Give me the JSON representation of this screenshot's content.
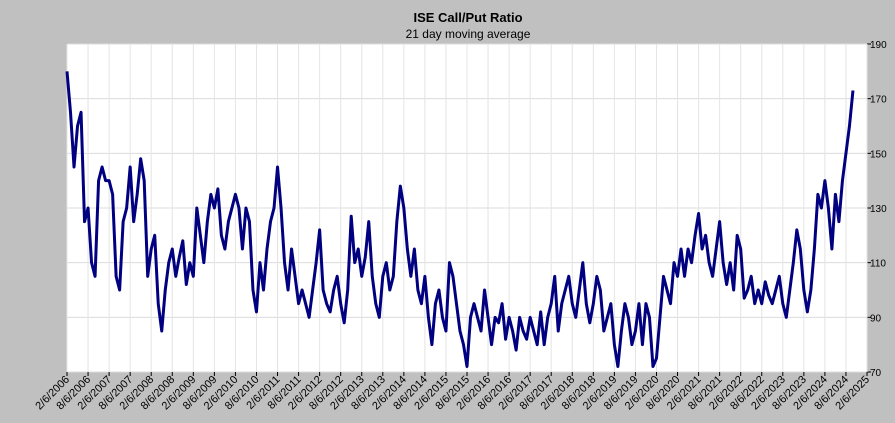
{
  "chart_data": {
    "type": "line",
    "title": "ISE  Call/Put Ratio",
    "subtitle": "21 day moving average",
    "x": [
      "2/6/2006",
      "3/6/2006",
      "4/6/2006",
      "5/6/2006",
      "6/6/2006",
      "7/6/2006",
      "8/6/2006",
      "9/6/2006",
      "10/6/2006",
      "11/6/2006",
      "12/6/2006",
      "1/6/2007",
      "2/6/2007",
      "3/6/2007",
      "4/6/2007",
      "5/6/2007",
      "6/6/2007",
      "7/6/2007",
      "8/6/2007",
      "9/6/2007",
      "10/6/2007",
      "11/6/2007",
      "12/6/2007",
      "1/6/2008",
      "2/6/2008",
      "3/6/2008",
      "4/6/2008",
      "5/6/2008",
      "6/6/2008",
      "7/6/2008",
      "8/6/2008",
      "9/6/2008",
      "10/6/2008",
      "11/6/2008",
      "12/6/2008",
      "1/6/2009",
      "2/6/2009",
      "3/6/2009",
      "4/6/2009",
      "5/6/2009",
      "6/6/2009",
      "7/6/2009",
      "8/6/2009",
      "9/6/2009",
      "10/6/2009",
      "11/6/2009",
      "12/6/2009",
      "1/6/2010",
      "2/6/2010",
      "3/6/2010",
      "4/6/2010",
      "5/6/2010",
      "6/6/2010",
      "7/6/2010",
      "8/6/2010",
      "9/6/2010",
      "10/6/2010",
      "11/6/2010",
      "12/6/2010",
      "1/6/2011",
      "2/6/2011",
      "3/6/2011",
      "4/6/2011",
      "5/6/2011",
      "6/6/2011",
      "7/6/2011",
      "8/6/2011",
      "9/6/2011",
      "10/6/2011",
      "11/6/2011",
      "12/6/2011",
      "1/6/2012",
      "2/6/2012",
      "3/6/2012",
      "4/6/2012",
      "5/6/2012",
      "6/6/2012",
      "7/6/2012",
      "8/6/2012",
      "9/6/2012",
      "10/6/2012",
      "11/6/2012",
      "12/6/2012",
      "1/6/2013",
      "2/6/2013",
      "3/6/2013",
      "4/6/2013",
      "5/6/2013",
      "6/6/2013",
      "7/6/2013",
      "8/6/2013",
      "9/6/2013",
      "10/6/2013",
      "11/6/2013",
      "12/6/2013",
      "1/6/2014",
      "2/6/2014",
      "3/6/2014",
      "4/6/2014",
      "5/6/2014",
      "6/6/2014",
      "7/6/2014",
      "8/6/2014",
      "9/6/2014",
      "10/6/2014",
      "11/6/2014",
      "12/6/2014",
      "1/6/2015",
      "2/6/2015",
      "3/6/2015",
      "4/6/2015",
      "5/6/2015",
      "6/6/2015",
      "7/6/2015",
      "8/6/2015",
      "9/6/2015",
      "10/6/2015",
      "11/6/2015",
      "12/6/2015",
      "1/6/2016",
      "2/6/2016",
      "3/6/2016",
      "4/6/2016",
      "5/6/2016",
      "6/6/2016",
      "7/6/2016",
      "8/6/2016",
      "9/6/2016",
      "10/6/2016",
      "11/6/2016",
      "12/6/2016",
      "1/6/2017",
      "2/6/2017",
      "3/6/2017",
      "4/6/2017",
      "5/6/2017",
      "6/6/2017",
      "7/6/2017",
      "8/6/2017",
      "9/6/2017",
      "10/6/2017",
      "11/6/2017",
      "12/6/2017",
      "1/6/2018",
      "2/6/2018",
      "3/6/2018",
      "4/6/2018",
      "5/6/2018",
      "6/6/2018",
      "7/6/2018",
      "8/6/2018",
      "9/6/2018",
      "10/6/2018",
      "11/6/2018",
      "12/6/2018",
      "1/6/2019",
      "2/6/2019",
      "3/6/2019",
      "4/6/2019",
      "5/6/2019",
      "6/6/2019",
      "7/6/2019",
      "8/6/2019",
      "9/6/2019",
      "10/6/2019",
      "11/6/2019",
      "12/6/2019",
      "1/6/2020",
      "2/6/2020",
      "3/6/2020",
      "4/6/2020",
      "5/6/2020",
      "6/6/2020",
      "7/6/2020",
      "8/6/2020",
      "9/6/2020",
      "10/6/2020",
      "11/6/2020",
      "12/6/2020",
      "1/6/2021",
      "2/6/2021",
      "3/6/2021",
      "4/6/2021",
      "5/6/2021",
      "6/6/2021",
      "7/6/2021",
      "8/6/2021",
      "9/6/2021",
      "10/6/2021",
      "11/6/2021",
      "12/6/2021",
      "1/6/2022",
      "2/6/2022",
      "3/6/2022",
      "4/6/2022",
      "5/6/2022",
      "6/6/2022",
      "7/6/2022",
      "8/6/2022",
      "9/6/2022",
      "10/6/2022",
      "11/6/2022",
      "12/6/2022",
      "1/6/2023",
      "2/6/2023",
      "3/6/2023",
      "4/6/2023",
      "5/6/2023",
      "6/6/2023",
      "7/6/2023",
      "8/6/2023",
      "9/6/2023",
      "10/6/2023",
      "11/6/2023",
      "12/6/2023",
      "1/6/2024",
      "2/6/2024",
      "3/6/2024",
      "4/6/2024",
      "5/6/2024",
      "6/6/2024",
      "7/6/2024",
      "8/6/2024",
      "9/6/2024",
      "10/6/2024"
    ],
    "series": [
      {
        "name": "21 day moving average",
        "color": "#000080",
        "values": [
          180,
          165,
          145,
          160,
          165,
          125,
          130,
          110,
          105,
          140,
          145,
          140,
          140,
          135,
          105,
          100,
          125,
          130,
          145,
          125,
          135,
          148,
          140,
          105,
          115,
          120,
          95,
          85,
          100,
          110,
          115,
          105,
          112,
          118,
          102,
          110,
          105,
          130,
          120,
          110,
          125,
          135,
          130,
          137,
          120,
          115,
          125,
          130,
          135,
          130,
          115,
          130,
          125,
          100,
          92,
          110,
          100,
          115,
          125,
          130,
          145,
          130,
          110,
          100,
          115,
          105,
          95,
          100,
          95,
          90,
          100,
          110,
          122,
          100,
          95,
          92,
          100,
          105,
          95,
          88,
          100,
          127,
          110,
          115,
          105,
          112,
          125,
          105,
          95,
          90,
          105,
          110,
          100,
          105,
          125,
          138,
          130,
          115,
          105,
          115,
          100,
          95,
          105,
          90,
          80,
          95,
          100,
          90,
          85,
          110,
          105,
          95,
          85,
          80,
          72,
          90,
          95,
          90,
          85,
          100,
          90,
          80,
          90,
          88,
          95,
          82,
          90,
          85,
          78,
          90,
          85,
          82,
          90,
          85,
          80,
          92,
          80,
          90,
          95,
          105,
          85,
          95,
          100,
          105,
          95,
          90,
          100,
          110,
          95,
          88,
          95,
          105,
          100,
          85,
          90,
          95,
          80,
          72,
          85,
          95,
          90,
          80,
          85,
          95,
          80,
          95,
          90,
          72,
          75,
          90,
          105,
          100,
          95,
          110,
          105,
          115,
          105,
          115,
          110,
          120,
          128,
          115,
          120,
          110,
          105,
          115,
          125,
          110,
          102,
          110,
          100,
          120,
          115,
          97,
          100,
          105,
          95,
          100,
          95,
          103,
          98,
          95,
          100,
          105,
          95,
          90,
          100,
          110,
          122,
          115,
          100,
          92,
          100,
          115,
          135,
          130,
          140,
          130,
          115,
          135,
          125,
          140,
          150,
          160,
          173
        ]
      }
    ],
    "xticks": [
      "2/6/2006",
      "8/6/2006",
      "2/6/2007",
      "8/6/2007",
      "2/6/2008",
      "8/6/2008",
      "2/6/2009",
      "8/6/2009",
      "2/6/2010",
      "8/6/2010",
      "2/6/2011",
      "8/6/2011",
      "2/6/2012",
      "8/6/2012",
      "2/6/2013",
      "8/6/2013",
      "2/6/2014",
      "8/6/2014",
      "2/6/2015",
      "8/6/2015",
      "2/6/2016",
      "8/6/2016",
      "2/6/2017",
      "8/6/2017",
      "2/6/2018",
      "8/6/2018",
      "2/6/2019",
      "8/6/2019",
      "2/6/2020",
      "8/6/2020",
      "2/6/2021",
      "8/6/2021",
      "2/6/2022",
      "8/6/2022",
      "2/6/2023",
      "8/6/2023",
      "2/6/2024",
      "8/6/2024",
      "2/6/2025"
    ],
    "ylim": [
      70,
      190
    ],
    "yticks": [
      70,
      90,
      110,
      130,
      150,
      170,
      190
    ],
    "grid": true
  }
}
